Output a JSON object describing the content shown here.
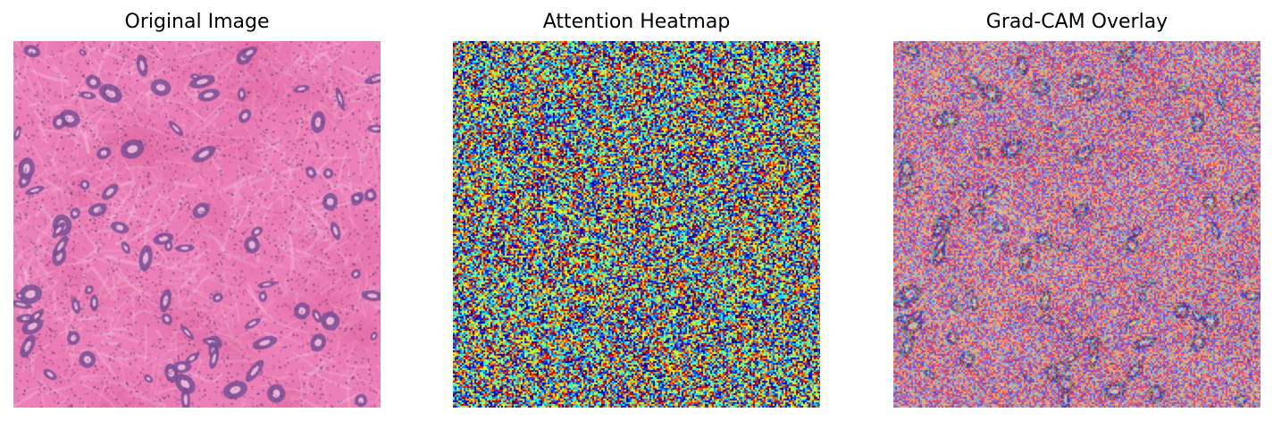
{
  "figure": {
    "panels": [
      {
        "title": "Original Image",
        "kind": "histology-tissue"
      },
      {
        "title": "Attention Heatmap",
        "kind": "jet-colormap-noise"
      },
      {
        "title": "Grad-CAM Overlay",
        "kind": "tissue-with-heatmap-overlay"
      }
    ],
    "colors": {
      "tissue_pink": "#ec7fb8",
      "stroma_light": "#f6bedd",
      "gland_purple": "#7a4f95",
      "nuclei_dark": "#6f3a78"
    }
  }
}
